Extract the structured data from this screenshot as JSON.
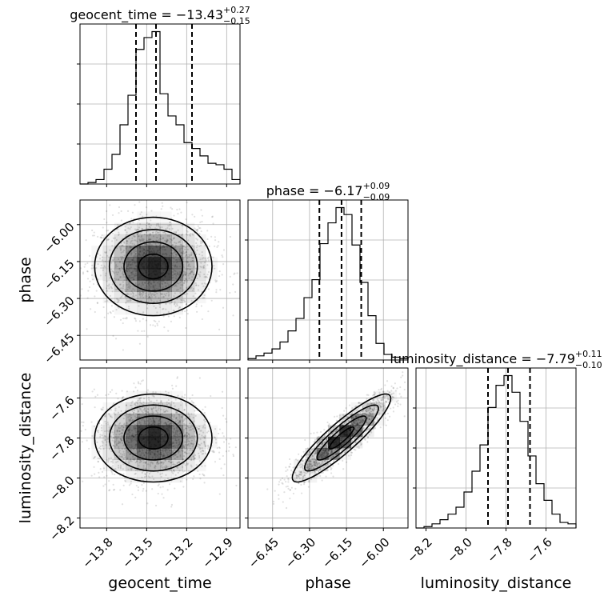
{
  "chart_data": {
    "type": "corner",
    "parameters": [
      "geocent_time",
      "phase",
      "luminosity_distance"
    ],
    "grid": true,
    "marginals": [
      {
        "name": "geocent_time",
        "title": {
          "prefix": "geocent_time = ",
          "median": "−13.43",
          "upper": "+0.27",
          "lower": "−0.15"
        },
        "range": [
          -14.0,
          -12.8
        ],
        "ticks": [
          -13.8,
          -13.5,
          -13.2,
          -12.9
        ],
        "tick_labels": [
          "−13.8",
          "−13.5",
          "−13.2",
          "−12.9"
        ],
        "quantiles": [
          -13.58,
          -13.43,
          -13.16
        ],
        "bin_edges": [
          -14.0,
          -13.94,
          -13.88,
          -13.82,
          -13.76,
          -13.7,
          -13.64,
          -13.58,
          -13.52,
          -13.46,
          -13.4,
          -13.34,
          -13.28,
          -13.22,
          -13.16,
          -13.1,
          -13.04,
          -12.98,
          -12.92,
          -12.86,
          -12.8
        ],
        "counts": [
          0.0,
          0.01,
          0.03,
          0.1,
          0.2,
          0.4,
          0.6,
          0.91,
          0.99,
          1.03,
          0.61,
          0.46,
          0.4,
          0.28,
          0.24,
          0.19,
          0.14,
          0.13,
          0.1,
          0.03
        ]
      },
      {
        "name": "phase",
        "title": {
          "prefix": "phase = ",
          "median": "−6.17",
          "upper": "+0.09",
          "lower": "−0.09"
        },
        "range": [
          -6.55,
          -5.9
        ],
        "ticks": [
          -6.45,
          -6.3,
          -6.15,
          -6.0
        ],
        "tick_labels": [
          "−6.45",
          "−6.30",
          "−6.15",
          "−6.00"
        ],
        "quantiles": [
          -6.26,
          -6.17,
          -6.09
        ],
        "bin_edges": [
          -6.55,
          -6.5175,
          -6.485,
          -6.4525,
          -6.42,
          -6.3875,
          -6.355,
          -6.3225,
          -6.29,
          -6.2575,
          -6.225,
          -6.1925,
          -6.16,
          -6.1275,
          -6.095,
          -6.0625,
          -6.03,
          -5.9975,
          -5.965,
          -5.9325,
          -5.9
        ],
        "counts": [
          0.01,
          0.03,
          0.05,
          0.08,
          0.13,
          0.21,
          0.3,
          0.45,
          0.58,
          0.84,
          0.99,
          1.1,
          1.05,
          0.83,
          0.56,
          0.32,
          0.12,
          0.04,
          0.02,
          0.01
        ]
      },
      {
        "name": "luminosity_distance",
        "title": {
          "prefix": "luminosity_distance = ",
          "median": "−7.79",
          "upper": "+0.11",
          "lower": "−0.10"
        },
        "range": [
          -8.25,
          -7.45
        ],
        "ticks": [
          -8.2,
          -8.0,
          -7.8,
          -7.6
        ],
        "tick_labels": [
          "−8.2",
          "−8.0",
          "−7.8",
          "−7.6"
        ],
        "quantiles": [
          -7.89,
          -7.79,
          -7.68
        ],
        "bin_edges": [
          -8.25,
          -8.21,
          -8.17,
          -8.13,
          -8.09,
          -8.05,
          -8.01,
          -7.97,
          -7.93,
          -7.89,
          -7.85,
          -7.81,
          -7.77,
          -7.73,
          -7.69,
          -7.65,
          -7.61,
          -7.57,
          -7.53,
          -7.49,
          -7.45
        ],
        "counts": [
          0.0,
          0.01,
          0.03,
          0.06,
          0.1,
          0.15,
          0.26,
          0.41,
          0.6,
          0.87,
          1.03,
          1.1,
          0.98,
          0.77,
          0.52,
          0.32,
          0.2,
          0.1,
          0.04,
          0.03
        ]
      }
    ],
    "joint": [
      {
        "x": "geocent_time",
        "y": "phase",
        "y_range": [
          -6.55,
          -5.9
        ],
        "y_ticks": [
          -6.45,
          -6.3,
          -6.15,
          -6.0
        ],
        "y_tick_labels": [
          "−6.45",
          "−6.30",
          "−6.15",
          "−6.00"
        ],
        "mean": [
          -13.45,
          -6.17
        ],
        "sd": [
          0.22,
          0.1
        ],
        "corr": 0.0
      },
      {
        "x": "geocent_time",
        "y": "luminosity_distance",
        "mean": [
          -13.45,
          -7.8
        ],
        "sd": [
          0.22,
          0.11
        ],
        "corr": 0.0
      },
      {
        "x": "phase",
        "y": "luminosity_distance",
        "mean": [
          -6.17,
          -7.8
        ],
        "sd": [
          0.1,
          0.11
        ],
        "corr": 0.9
      }
    ],
    "axis_labels": {
      "x": [
        "geocent_time",
        "phase",
        "luminosity_distance"
      ],
      "y": [
        "phase",
        "luminosity_distance"
      ]
    }
  }
}
